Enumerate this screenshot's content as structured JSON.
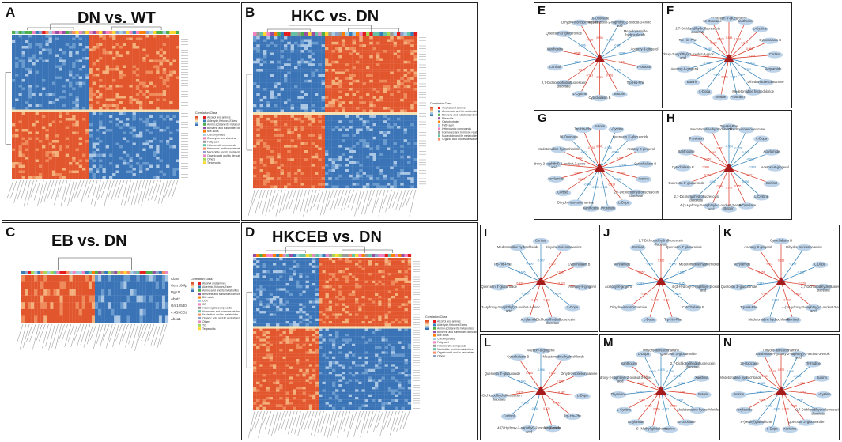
{
  "colors": {
    "pos": "#d7301f",
    "neg": "#2c7fb8",
    "node": "#bcd3ea",
    "hub": "#a61c1c",
    "cold": "#3a73b6",
    "warm": "#e2562e",
    "pale": "#f6e0b5"
  },
  "heatmaps": [
    {
      "letter": "A",
      "title": "DN vs. WT",
      "legend_title": "Correlation  Class",
      "legend_items": [
        "Alcohol and amines",
        "Aldehyde,Ketones,Esters",
        "Amino acid and its metabolites",
        "Benzene and substituted derivatives",
        "Bile acids",
        "Carbohydrates",
        "Coenzyme and vitamins",
        "Fatty acyl",
        "Heterocyclic compounds",
        "Hormones and hormone related compounds",
        "Nucleotide and its metabolites",
        "Organic acid and its derivatives",
        "Others",
        "Terpenoids"
      ]
    },
    {
      "letter": "B",
      "title": "HKC vs. DN",
      "legend_title": "Correlation  Class",
      "legend_items": [
        "Alcohol and amines",
        "Amino acid and its metabolites",
        "Benzene and substituted derivatives",
        "Bile acids",
        "Carbohydrates",
        "Fatty acyl",
        "Heterocyclic compounds",
        "Hormones and hormone related compounds",
        "Nucleotide and its metabolites",
        "Organic acid and its derivatives"
      ]
    },
    {
      "letter": "C",
      "title": "EB vs. DN",
      "legend_title": "Correlation  Class",
      "legend_items": [
        "Alcohol and amines",
        "Aldehyde,Ketones,Esters",
        "Amino acid and its metabolites",
        "Benzene and substituted derivatives",
        "Bile acids",
        "CoA",
        "GP",
        "Heterocyclic compounds",
        "Hormones and hormone related compounds",
        "Nucleotide and its metabolites",
        "Organic acid and its derivatives",
        "Others",
        "TG",
        "Terpenoids"
      ],
      "row_labels": [
        "Class",
        "Cecr100lp",
        "Pgp11",
        "Abat2",
        "Gm12540",
        "4.4B3COL",
        "Abca1"
      ]
    },
    {
      "letter": "D",
      "title": "HKCEB vs. DN",
      "legend_title": "Correlation  Class",
      "legend_items": [
        "Alcohol and amines",
        "Aldehyde,Ketones,Esters",
        "Amino acid and its metabolites",
        "Benzene and substituted derivatives",
        "Bile acids",
        "Carbohydrates",
        "Fatty acyl",
        "Heterocyclic compounds",
        "Nucleotide and its metabolites",
        "Organic acid and its derivatives",
        "Others"
      ]
    }
  ],
  "networks": [
    {
      "letter": "E",
      "nodes": [
        "16-Oxoclaire",
        "4-(3-Hydroxy-2-naphthyl)-2-oxobut-3-enoic acid",
        "Metoclopramide hydrochloride",
        "Acetoxy-8-gingerol",
        "Prostratin",
        "Trp-His-Phe",
        "Butorin",
        "Cytochalasin B",
        "L-Cystine",
        "2,7-Dichlorodihydrofluorescein diacetate",
        "Cortisol",
        "Xanthosine",
        "Quercetin 3'-glucuronide",
        "Dihydro-isorescinnamine"
      ]
    },
    {
      "letter": "F",
      "nodes": [
        "Quercetin 3'-glucuronide",
        "Xanthosine",
        "L-Cystine",
        "Cytochalasin B",
        "Cortisol",
        "Acrylamide",
        "Dihydro-isorescinnamine",
        "Medetomidine hydrochloride",
        "Prostratin",
        "Inosine",
        "L-Dopa",
        "Butorin",
        "Acetoxy-8-gingerol",
        "4-(3-Hydroxy-2-naphthyl)-2-oxobut-3-enoic acid",
        "Trp-His-Phe",
        "2,7-Dichlorodihydrofluorescein diacetate",
        "16-Oxoclaire"
      ]
    },
    {
      "letter": "G",
      "nodes": [
        "Butorin",
        "L-Cystine",
        "Quercetin 3'-glucuronide",
        "Acetoxy-8-gingerol",
        "Cytochalasin B",
        "Inosine",
        "2,7-Dichlorodihydrofluorescein diacetate",
        "L-Dopa",
        "Prostratin",
        "Xanthosine",
        "Dihydro-isorescinnamine",
        "Cortisol",
        "Acrylamide",
        "4-(3-Hydroxy-2-naphthyl)-2-oxobut-3-enoic acid",
        "Medetomidine hydrochloride",
        "16-Oxoclaire",
        "Trp-His-Phe"
      ]
    },
    {
      "letter": "H",
      "nodes": [
        "Trp-His-Phe",
        "Dihydro-isorescinnamine",
        "L-Dopa",
        "Acrylamide",
        "Acetoxy-8-gingerol",
        "Cortisol",
        "L-Cystine",
        "16-Oxoclaire",
        "Butorin",
        "4-(3-Hydroxy-2-naphthyl)-2-oxobut-3-enoic acid",
        "2,7-Dichlorodihydrofluorescein diacetate",
        "Quercetin 3'-glucuronide",
        "Cytochalasin B",
        "Xanthosine",
        "Prostratin",
        "Medetomidine hydrochloride"
      ]
    },
    {
      "letter": "I",
      "nodes": [
        "Cortisol",
        "Dihydro-isorescinnamine",
        "Cytochalasin B",
        "Acetoxy-8-gingerol",
        "L-Dopa",
        "2,7-Dichlorodihydrofluorescein diacetate",
        "Acrylamide",
        "4-(3-Hydroxy-2-naphthyl)-2-oxobut-3-enoic acid",
        "Quercetin 3'-glucuronide",
        "Trp-His-Phe",
        "Medetomidine hydrochloride"
      ]
    },
    {
      "letter": "J",
      "nodes": [
        "2,7-Dichlorodihydrofluorescein diacetate",
        "Quercetin 3'-glucuronide",
        "Medetomidine hydrochloride",
        "4-(3-Hydroxy-2-naphthyl)-2-oxobut-3-enoic acid",
        "Cytochalasin B",
        "Trp-His-Phe",
        "L-Dopa",
        "Dihydro-isorescinnamine",
        "Acetoxy-8-gingerol",
        "Acrylamide",
        "Cortisol"
      ]
    },
    {
      "letter": "K",
      "nodes": [
        "Cytochalasin B",
        "Dihydro-isorescinnamine",
        "L-Dopa",
        "2,7-Dichlorodihydrofluorescein diacetate",
        "4-(3-Hydroxy-2-naphthyl)-2-oxobut-3-enoic acid",
        "Cortisol",
        "Medetomidine hydrochloride",
        "Trp-His-Phe",
        "Quercetin 3'-glucuronide",
        "Acrylamide",
        "Acetoxy-8-gingerol"
      ]
    },
    {
      "letter": "L",
      "nodes": [
        "Acetoxy-8-gingerol",
        "Medetomidine hydrochloride",
        "Dihydro-isorescinnamine",
        "L-Dopa",
        "Trp-His-Phe",
        "Acrylamide",
        "4-(3-Hydroxy-2-naphthyl)-2-oxobut-3-enoic acid",
        "Cortisol",
        "2,7-Dichlorodihydrofluorescein diacetate",
        "Quercetin 3'-glucuronide",
        "Cytochalasin B"
      ]
    },
    {
      "letter": "M",
      "nodes": [
        "Dihydro-isorescinnamine",
        "Quercetin 3'-glucuronide",
        "2,7-Dichlorodihydrofluorescein diacetate",
        "Xanthine",
        "Butorin",
        "Medetomidine hydrochloride",
        "16-Oxoclaire",
        "Inosine",
        "S-(Methyl)glutathione",
        "Acrylamide",
        "L-Cystine",
        "Thymidine",
        "4-(3-Hydroxy-2-naphthyl)-2-oxobut-3-enoic acid",
        "Xanthosine",
        "L-Dopa"
      ]
    },
    {
      "letter": "N",
      "nodes": [
        "Dihydro-isorescinnamine",
        "4-(3-Hydroxy-2-naphthyl)-2-oxobut-3-enoic acid",
        "Thymidine",
        "Butorin",
        "L-Cystine",
        "2,7-Dichlorodihydrofluorescein diacetate",
        "Quercetin 3'-glucuronide",
        "Xanthine",
        "L-Dopa",
        "S-(Methyl)glutathione",
        "Acrylamide",
        "Inosine",
        "Medetomidine hydrochloride",
        "16-Oxoclaire",
        "Xanthosine"
      ]
    }
  ],
  "chart_data": [
    {
      "type": "heatmap",
      "panel": "A",
      "title": "DN vs. WT",
      "value_range": [
        -1,
        1
      ],
      "blocks": [
        {
          "rows": "top",
          "cols": "left",
          "sign": "negative"
        },
        {
          "rows": "top",
          "cols": "right",
          "sign": "positive"
        },
        {
          "rows": "bottom",
          "cols": "left",
          "sign": "positive"
        },
        {
          "rows": "bottom",
          "cols": "right",
          "sign": "negative"
        }
      ]
    },
    {
      "type": "heatmap",
      "panel": "B",
      "title": "HKC vs. DN",
      "value_range": [
        -1,
        1
      ],
      "blocks": [
        {
          "rows": "top",
          "cols": "left",
          "sign": "negative"
        },
        {
          "rows": "top",
          "cols": "right",
          "sign": "positive"
        },
        {
          "rows": "bottom",
          "cols": "left",
          "sign": "positive"
        },
        {
          "rows": "bottom",
          "cols": "right",
          "sign": "negative"
        }
      ]
    },
    {
      "type": "heatmap",
      "panel": "C",
      "title": "EB vs. DN",
      "value_range": [
        -1,
        1
      ],
      "blocks": [
        {
          "rows": "all",
          "cols": "left",
          "sign": "positive"
        },
        {
          "rows": "all",
          "cols": "right",
          "sign": "negative"
        }
      ]
    },
    {
      "type": "heatmap",
      "panel": "D",
      "title": "HKCEB vs. DN",
      "value_range": [
        -1,
        1
      ],
      "blocks": [
        {
          "rows": "top",
          "cols": "left",
          "sign": "negative"
        },
        {
          "rows": "top",
          "cols": "right",
          "sign": "positive"
        },
        {
          "rows": "bottom",
          "cols": "left",
          "sign": "positive"
        },
        {
          "rows": "bottom",
          "cols": "right",
          "sign": "negative"
        }
      ]
    }
  ]
}
